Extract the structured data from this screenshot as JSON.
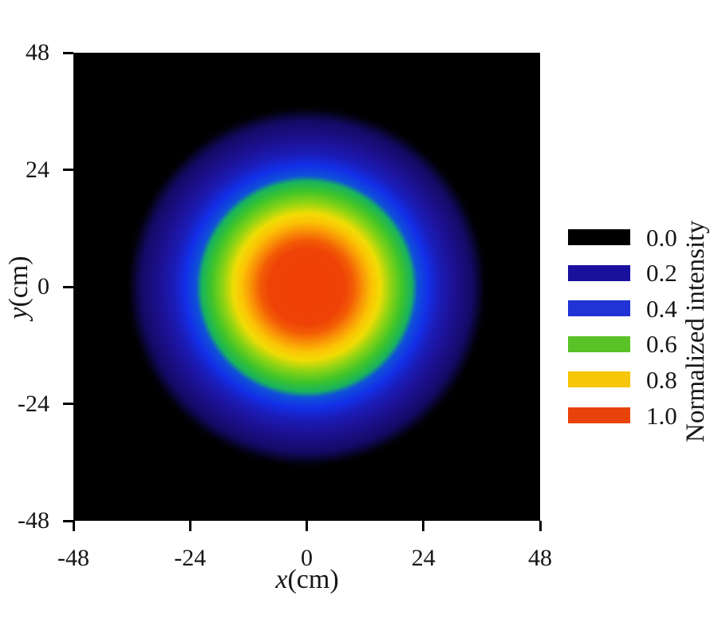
{
  "figure": {
    "background": "#ffffff",
    "text_color": "#161616"
  },
  "axes": {
    "x": {
      "variable": "x",
      "unit": "(cm)",
      "range": [
        -48,
        48
      ],
      "ticks": [
        {
          "v": -48,
          "label": "-48"
        },
        {
          "v": -24,
          "label": "-24"
        },
        {
          "v": 0,
          "label": "0"
        },
        {
          "v": 24,
          "label": "24"
        },
        {
          "v": 48,
          "label": "48"
        }
      ]
    },
    "y": {
      "variable": "y",
      "unit": "(cm)",
      "range": [
        -48,
        48
      ],
      "ticks": [
        {
          "v": 48,
          "label": "48"
        },
        {
          "v": 24,
          "label": "24"
        },
        {
          "v": 0,
          "label": "0"
        },
        {
          "v": -24,
          "label": "-24"
        },
        {
          "v": -48,
          "label": "-48"
        }
      ]
    }
  },
  "legend": {
    "title": "Normalized intensity",
    "entries": [
      {
        "value": "0.0",
        "color": "#000000"
      },
      {
        "value": "0.2",
        "color": "#19119e"
      },
      {
        "value": "0.4",
        "color": "#2233d6"
      },
      {
        "value": "0.6",
        "color": "#59c226"
      },
      {
        "value": "0.8",
        "color": "#f7c608"
      },
      {
        "value": "1.0",
        "color": "#e9430c"
      }
    ]
  },
  "chart_data": {
    "type": "heatmap",
    "title": "",
    "xlabel": "x(cm)",
    "ylabel": "y(cm)",
    "x_range": [
      -48,
      48
    ],
    "y_range": [
      -48,
      48
    ],
    "x_ticks": [
      -48,
      -24,
      0,
      24,
      48
    ],
    "y_ticks": [
      48,
      24,
      0,
      -24,
      -48
    ],
    "grid": false,
    "legend_position": "right",
    "colorbar_label": "Normalized intensity",
    "colorbar_levels": [
      {
        "value": 0.0,
        "color": "#000000"
      },
      {
        "value": 0.2,
        "color": "#19119e"
      },
      {
        "value": 0.4,
        "color": "#2233d6"
      },
      {
        "value": 0.6,
        "color": "#59c226"
      },
      {
        "value": 0.8,
        "color": "#f7c608"
      },
      {
        "value": 1.0,
        "color": "#e9430c"
      }
    ],
    "pattern": "circularly symmetric beam intensity distribution centered at origin on black background",
    "center_xy_cm": [
      0,
      0
    ],
    "spot_outer_radius_cm": 36.5,
    "radial_profile": [
      {
        "r_cm": 0,
        "intensity": 1.0
      },
      {
        "r_cm": 8,
        "intensity": 1.0
      },
      {
        "r_cm": 11,
        "intensity": 0.95
      },
      {
        "r_cm": 13,
        "intensity": 0.85
      },
      {
        "r_cm": 15,
        "intensity": 0.8
      },
      {
        "r_cm": 17,
        "intensity": 0.7
      },
      {
        "r_cm": 20,
        "intensity": 0.6
      },
      {
        "r_cm": 23,
        "intensity": 0.5
      },
      {
        "r_cm": 26,
        "intensity": 0.4
      },
      {
        "r_cm": 30,
        "intensity": 0.25
      },
      {
        "r_cm": 34,
        "intensity": 0.1
      },
      {
        "r_cm": 37,
        "intensity": 0.0
      },
      {
        "r_cm": 48,
        "intensity": 0.0
      }
    ],
    "colormap_stops": [
      {
        "pos": 0,
        "color": "#f04004"
      },
      {
        "pos": 16,
        "color": "#ee4206"
      },
      {
        "pos": 20,
        "color": "#f35c05"
      },
      {
        "pos": 24,
        "color": "#f99207"
      },
      {
        "pos": 28,
        "color": "#fbc404"
      },
      {
        "pos": 31.5,
        "color": "#f0dc05"
      },
      {
        "pos": 36,
        "color": "#8fd413"
      },
      {
        "pos": 41,
        "color": "#3ec42a"
      },
      {
        "pos": 45,
        "color": "#18b35e"
      },
      {
        "pos": 47.5,
        "color": "#0f51d8"
      },
      {
        "pos": 52,
        "color": "#122fe8"
      },
      {
        "pos": 57,
        "color": "#1b1cb8"
      },
      {
        "pos": 63,
        "color": "#1c1193"
      },
      {
        "pos": 71,
        "color": "#130a64"
      },
      {
        "pos": 76,
        "color": "#02010a"
      },
      {
        "pos": 78,
        "color": "#000000"
      },
      {
        "pos": 100,
        "color": "#000000"
      }
    ]
  }
}
